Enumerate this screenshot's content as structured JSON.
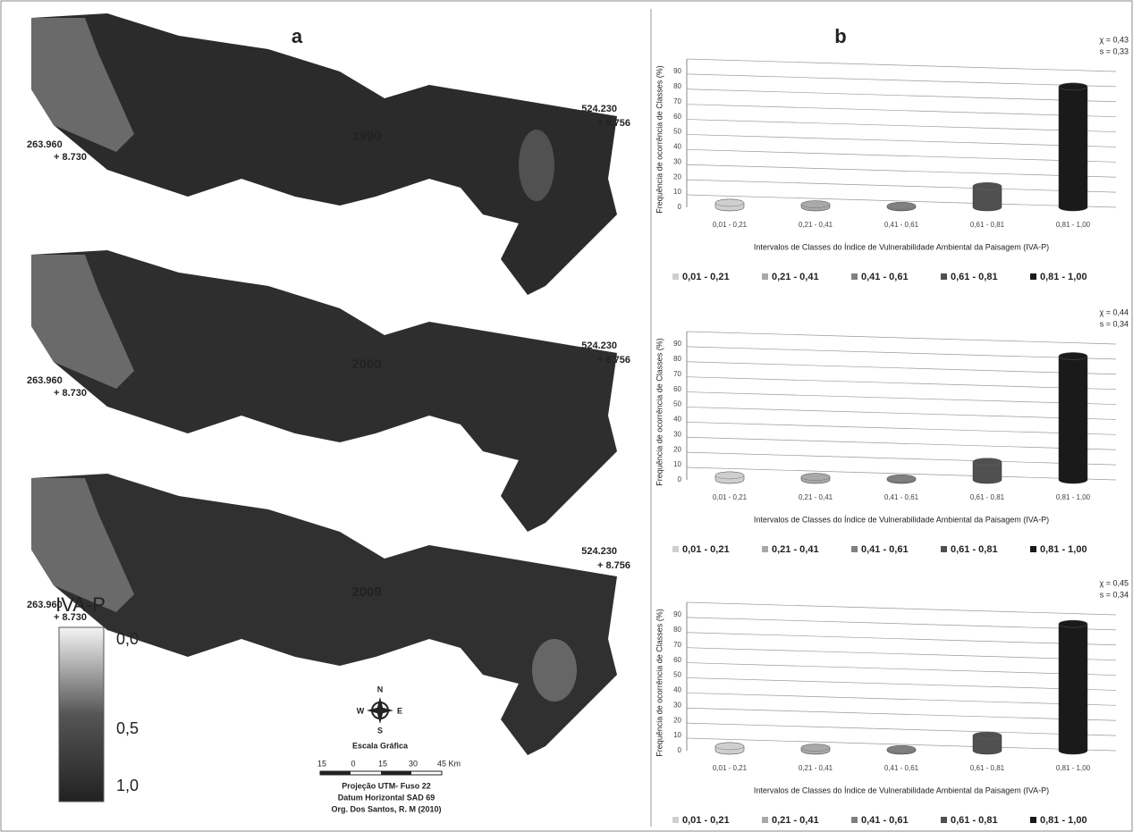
{
  "map": {
    "panel_label": "a",
    "years": [
      "1990",
      "2000",
      "2009"
    ],
    "east_coord": {
      "easting": "524.230",
      "northing": "+ 8.756"
    },
    "west_coord": {
      "easting": "263.960",
      "northing": "+ 8.730"
    },
    "legend": {
      "title": "IVA-P",
      "labels": [
        "0,0",
        "0,5",
        "1,0"
      ]
    },
    "compass": {
      "north": "N",
      "south": "S",
      "east": "E",
      "west": "W"
    },
    "scale": {
      "title": "Escala Gráfica",
      "ticks": [
        "15",
        "0",
        "15",
        "30",
        "45 Km"
      ]
    },
    "credits": [
      "Projeção UTM- Fuso 22",
      "Datum Horizontal SAD 69",
      "Org. Dos Santos, R. M (2010)"
    ]
  },
  "chart_panel_label": "b",
  "chart_data": [
    {
      "type": "bar",
      "y_label": "Frequência de ocorrência de Classes (%)",
      "x_label": "Intervalos de Classes do Índice de Vulnerabilidade Ambiental da Paisagem (IVA-P)",
      "categories": [
        "0,01 - 0,21",
        "0,21 - 0,41",
        "0,41 - 0,61",
        "0,61 - 0,81",
        "0,81 - 1,00"
      ],
      "values": [
        3,
        2,
        1,
        14,
        80
      ],
      "colors": [
        "#cfcfcf",
        "#a9a9a9",
        "#808080",
        "#505050",
        "#1a1a1a"
      ],
      "ylim": [
        0,
        90
      ],
      "yticks": [
        0,
        10,
        20,
        30,
        40,
        50,
        60,
        70,
        80,
        90
      ],
      "grid": true,
      "legend": "bottom",
      "annotations": [
        "χ = 0,43",
        "s = 0,33"
      ]
    },
    {
      "type": "bar",
      "y_label": "Frequência de ocorrência de Classes (%)",
      "x_label": "Intervalos de Classes do Índice de Vulnerabilidade Ambiental da Paisagem (IVA-P)",
      "categories": [
        "0,01 - 0,21",
        "0,21 - 0,41",
        "0,41 - 0,61",
        "0,61 - 0,81",
        "0,81 - 1,00"
      ],
      "values": [
        3,
        2,
        1,
        12,
        82
      ],
      "colors": [
        "#cfcfcf",
        "#a9a9a9",
        "#808080",
        "#505050",
        "#1a1a1a"
      ],
      "ylim": [
        0,
        90
      ],
      "yticks": [
        0,
        10,
        20,
        30,
        40,
        50,
        60,
        70,
        80,
        90
      ],
      "grid": true,
      "legend": "bottom",
      "annotations": [
        "χ = 0,44",
        "s = 0,34"
      ]
    },
    {
      "type": "bar",
      "y_label": "Frequência de ocorrência de Classes (%)",
      "x_label": "Intervalos de Classes do Índice de Vulnerabilidade Ambiental da Paisagem (IVA-P)",
      "categories": [
        "0,01 - 0,21",
        "0,21 - 0,41",
        "0,41 - 0,61",
        "0,61 - 0,81",
        "0,81 - 1,00"
      ],
      "values": [
        3,
        2,
        1,
        10,
        84
      ],
      "colors": [
        "#cfcfcf",
        "#a9a9a9",
        "#808080",
        "#505050",
        "#1a1a1a"
      ],
      "ylim": [
        0,
        90
      ],
      "yticks": [
        0,
        10,
        20,
        30,
        40,
        50,
        60,
        70,
        80,
        90
      ],
      "grid": true,
      "legend": "bottom",
      "annotations": [
        "χ = 0,45",
        "s = 0,34"
      ]
    }
  ]
}
